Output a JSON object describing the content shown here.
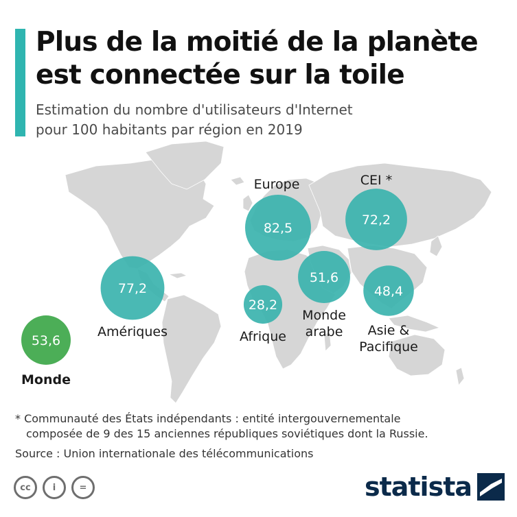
{
  "header": {
    "title_lines": [
      "Plus de la moitié de la planète",
      "est connectée sur la toile"
    ],
    "subtitle_lines": [
      "Estimation du nombre d'utilisateurs d'Internet",
      "pour 100 habitants par région en 2019"
    ]
  },
  "chart_data": {
    "type": "bubble-map",
    "title": "Plus de la moitié de la planète est connectée sur la toile",
    "subtitle": "Estimation du nombre d'utilisateurs d'Internet pour 100 habitants par région en 2019",
    "series": [
      {
        "region": "Europe",
        "value": 82.5,
        "value_label": "82,5"
      },
      {
        "region": "CEI *",
        "value": 72.2,
        "value_label": "72,2"
      },
      {
        "region": "Amériques",
        "value": 77.2,
        "value_label": "77,2"
      },
      {
        "region": "Afrique",
        "value": 28.2,
        "value_label": "28,2"
      },
      {
        "region": "Monde arabe",
        "value": 51.6,
        "value_label": "51,6"
      },
      {
        "region": "Asie & Pacifique",
        "value": 48.4,
        "value_label": "48,4"
      },
      {
        "region": "Monde",
        "value": 53.6,
        "value_label": "53,6",
        "is_world": true
      }
    ],
    "colors": {
      "region_bubble": "#3bb3ae",
      "world_bubble": "#4cae57",
      "land": "#d6d6d6"
    }
  },
  "footer": {
    "footnote_lines": [
      "* Communauté des États indépendants : entité intergouvernementale",
      "composée de 9 des 15 anciennes républiques soviétiques dont la Russie."
    ],
    "source": "Source : Union internationale des télécommunications",
    "license_icons": [
      "cc-icon",
      "by-icon",
      "nd-icon"
    ],
    "license_glyphs": [
      "cc",
      "i",
      "="
    ],
    "brand": "statista"
  },
  "colors": {
    "accent": "#2fb5b0",
    "brand": "#0b2a4a"
  }
}
